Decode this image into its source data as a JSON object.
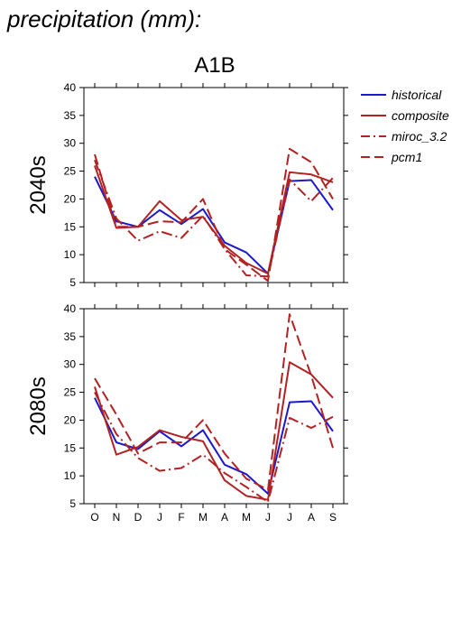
{
  "header": {
    "title": "precipitation (mm):",
    "scenario": "A1B"
  },
  "colors": {
    "historical": "#1a1acc",
    "model": "#b22222",
    "axis": "#000000"
  },
  "legend": [
    {
      "name": "historical",
      "style": "solid",
      "color": "#1a1acc"
    },
    {
      "name": "composite",
      "style": "solid",
      "color": "#b22222"
    },
    {
      "name": "miroc_3.2",
      "style": "dashdot",
      "color": "#b22222"
    },
    {
      "name": "pcm1",
      "style": "dashed",
      "color": "#b22222"
    }
  ],
  "chart_data": [
    {
      "type": "line",
      "panel_label": "2040s",
      "categories": [
        "O",
        "N",
        "D",
        "J",
        "F",
        "M",
        "A",
        "M",
        "J",
        "J",
        "A",
        "S"
      ],
      "ylim": [
        5,
        40
      ],
      "yticks": [
        5,
        10,
        15,
        20,
        25,
        30,
        35,
        40
      ],
      "series": [
        {
          "name": "historical",
          "values": [
            24.0,
            16.0,
            15.0,
            18.0,
            15.5,
            18.2,
            12.2,
            10.4,
            6.6,
            23.2,
            23.4,
            18.0
          ]
        },
        {
          "name": "composite",
          "values": [
            26.0,
            14.8,
            15.0,
            19.6,
            16.2,
            16.8,
            11.6,
            8.5,
            6.6,
            24.8,
            24.4,
            23.0
          ]
        },
        {
          "name": "miroc_3.2",
          "values": [
            27.0,
            16.5,
            12.5,
            14.2,
            13.0,
            17.0,
            11.0,
            6.3,
            6.1,
            23.5,
            19.6,
            23.8
          ]
        },
        {
          "name": "pcm1",
          "values": [
            28.0,
            15.0,
            15.0,
            16.0,
            15.8,
            20.0,
            11.0,
            8.2,
            5.3,
            29.0,
            26.6,
            20.0
          ]
        }
      ]
    },
    {
      "type": "line",
      "panel_label": "2080s",
      "categories": [
        "O",
        "N",
        "D",
        "J",
        "F",
        "M",
        "A",
        "M",
        "J",
        "J",
        "A",
        "S"
      ],
      "ylim": [
        5,
        40
      ],
      "yticks": [
        5,
        10,
        15,
        20,
        25,
        30,
        35,
        40
      ],
      "series": [
        {
          "name": "historical",
          "values": [
            24.0,
            16.0,
            14.8,
            18.0,
            15.3,
            18.2,
            12.0,
            10.3,
            6.8,
            23.2,
            23.4,
            18.0
          ]
        },
        {
          "name": "composite",
          "values": [
            26.0,
            13.8,
            15.2,
            18.2,
            17.0,
            16.2,
            9.2,
            6.4,
            5.7,
            30.4,
            28.2,
            24.0
          ]
        },
        {
          "name": "miroc_3.2",
          "values": [
            25.0,
            17.5,
            13.2,
            10.9,
            11.4,
            13.8,
            10.5,
            8.0,
            5.3,
            20.4,
            18.6,
            20.6
          ]
        },
        {
          "name": "pcm1",
          "values": [
            27.5,
            21.0,
            14.0,
            16.0,
            16.0,
            20.0,
            14.0,
            9.5,
            7.5,
            39.0,
            28.0,
            15.0
          ]
        }
      ]
    }
  ]
}
